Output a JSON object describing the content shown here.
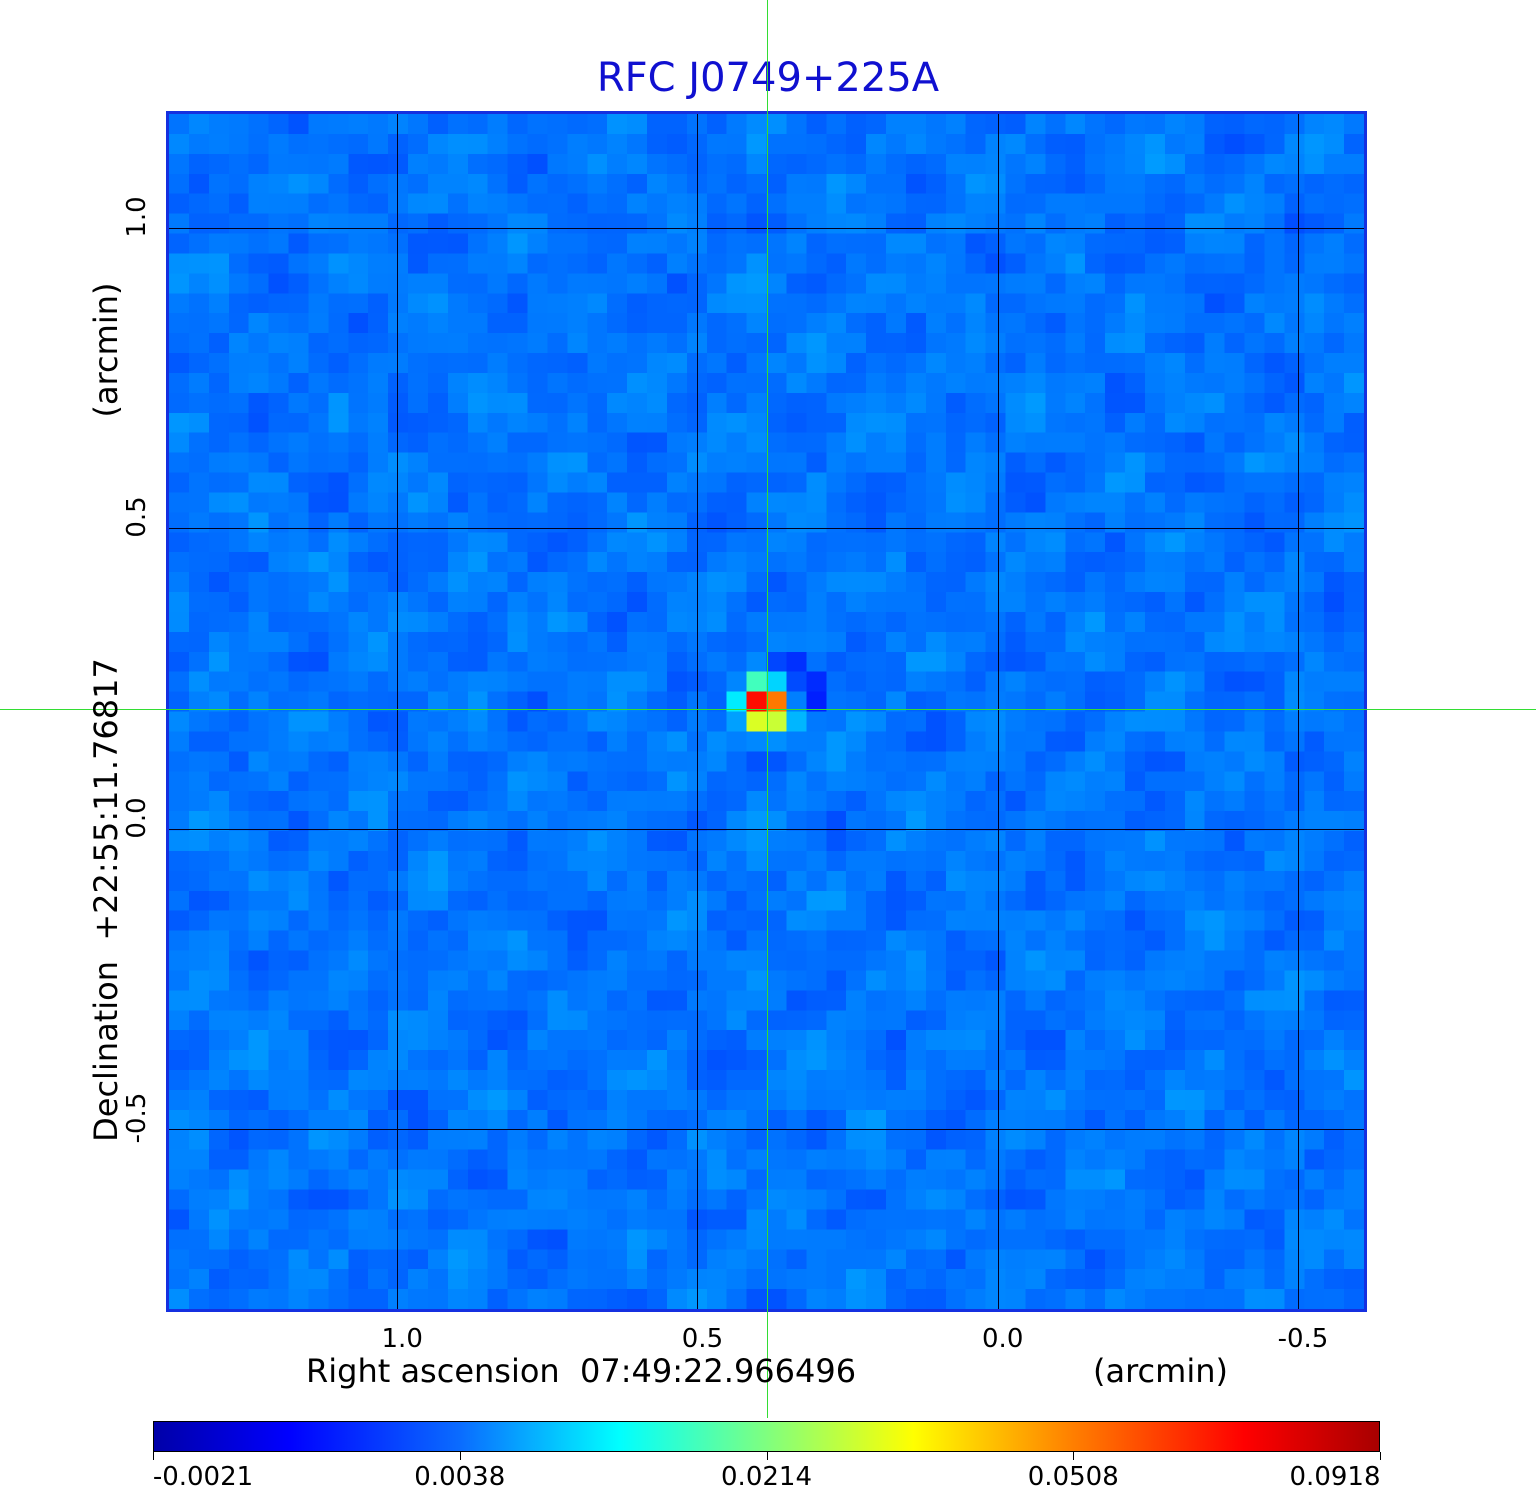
{
  "chart_data": {
    "type": "heatmap",
    "title": "RFC J0749+225A",
    "xlabel": "Right ascension  07:49:22.966496",
    "xunit": "(arcmin)",
    "ylabel": "Declination  +22:55:11.76817",
    "yunit": "(arcmin)",
    "xlim": [
      1.38,
      -0.62
    ],
    "ylim": [
      -0.81,
      1.19
    ],
    "x_ticks": [
      {
        "value": 1.0,
        "label": "1.0"
      },
      {
        "value": 0.5,
        "label": "0.5"
      },
      {
        "value": 0.0,
        "label": "0.0"
      },
      {
        "value": -0.5,
        "label": "-0.5"
      }
    ],
    "y_ticks": [
      {
        "value": 1.0,
        "label": "1.0"
      },
      {
        "value": 0.5,
        "label": "0.5"
      },
      {
        "value": 0.0,
        "label": "0.0"
      },
      {
        "value": -0.5,
        "label": "-0.5"
      }
    ],
    "grid": true,
    "crosshair": {
      "x": 0.38,
      "y": 0.2,
      "color": "#33dd33"
    },
    "source_peak": {
      "x": 0.38,
      "y": 0.2,
      "value": 0.0918
    },
    "colormap": "jet",
    "colorbar": {
      "placement": "bottom",
      "tick_labels": [
        "-0.0021",
        "0.0038",
        "0.0214",
        "0.0508",
        "0.0918"
      ]
    }
  }
}
